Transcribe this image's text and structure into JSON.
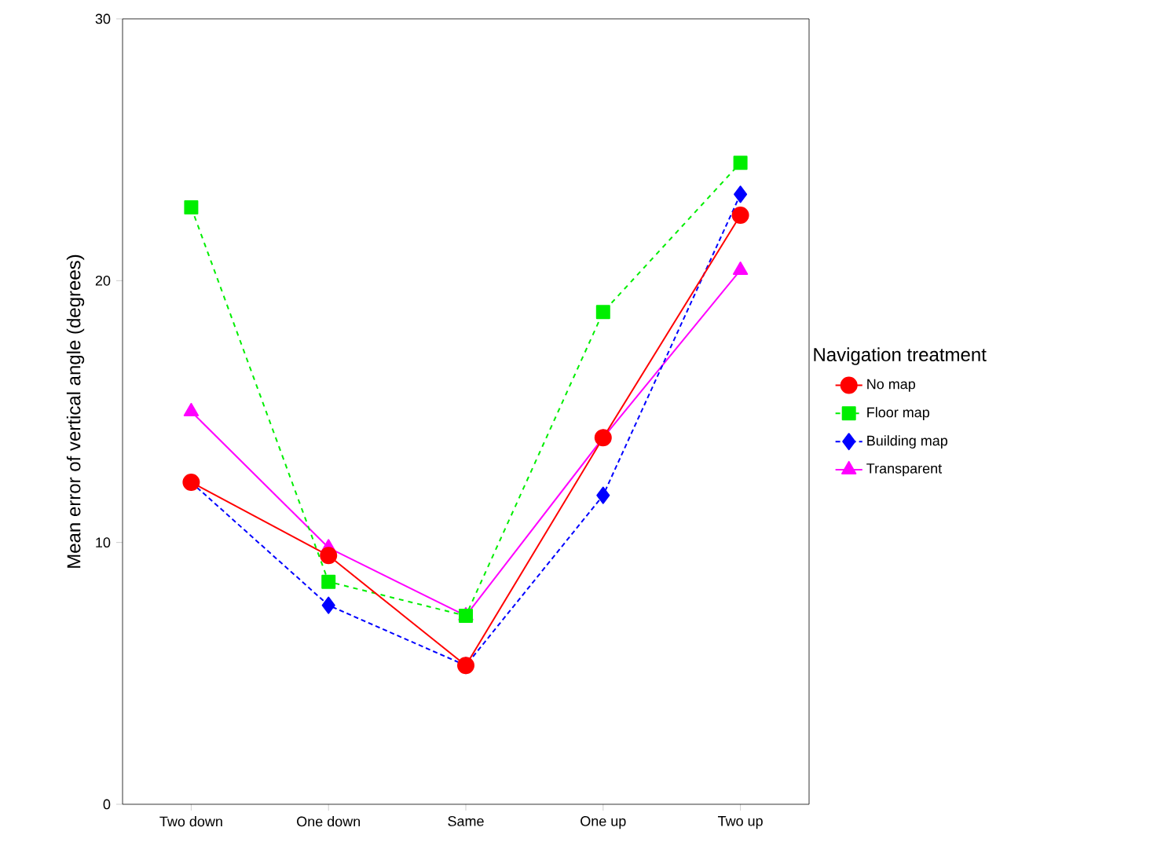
{
  "chart_data": {
    "type": "line",
    "ylabel": "Mean error of vertical angle (degrees)",
    "legend_title": "Navigation treatment",
    "categories": [
      "Two down",
      "One down",
      "Same",
      "One up",
      "Two up"
    ],
    "ylim": [
      0,
      30
    ],
    "yticks": [
      0,
      10,
      20,
      30
    ],
    "legend": "right",
    "series": [
      {
        "name": "No map",
        "color": "#ff0000",
        "marker": "circle",
        "line_style": "solid",
        "values": [
          12.3,
          9.5,
          5.3,
          14.0,
          22.5
        ]
      },
      {
        "name": "Floor map",
        "color": "#00ee00",
        "marker": "square",
        "line_style": "dashed",
        "values": [
          22.8,
          8.5,
          7.2,
          18.8,
          24.5
        ]
      },
      {
        "name": "Building map",
        "color": "#0000ff",
        "marker": "diamond",
        "line_style": "dotted",
        "values": [
          12.3,
          7.6,
          5.3,
          11.8,
          23.3
        ]
      },
      {
        "name": "Transparent",
        "color": "#ff00ff",
        "marker": "triangle",
        "line_style": "solid",
        "values": [
          15.0,
          9.8,
          7.2,
          14.0,
          20.4
        ]
      }
    ]
  }
}
